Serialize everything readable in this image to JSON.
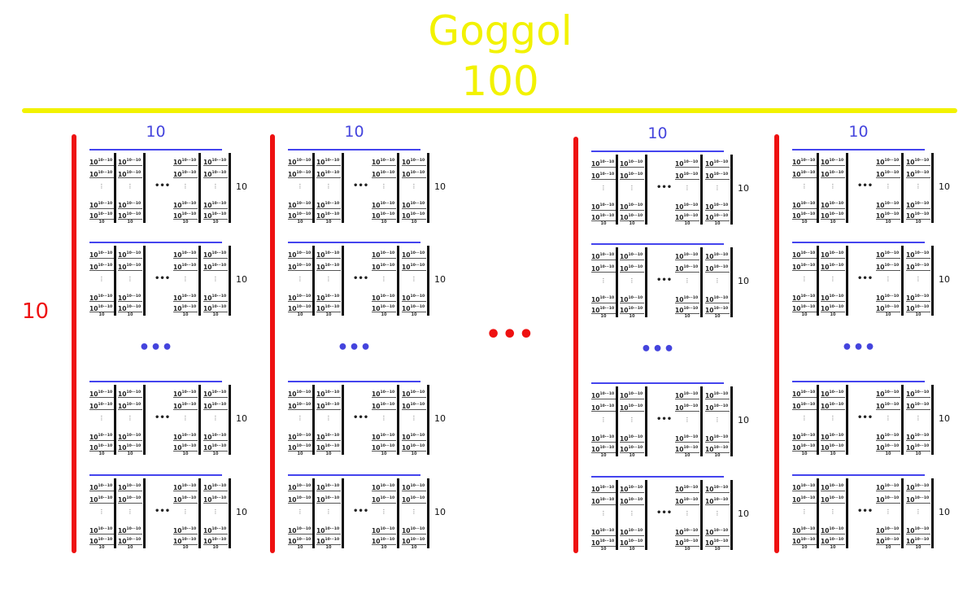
{
  "title": "Goggol",
  "subtitle": "100",
  "outer_count_label": "10",
  "outer_ellipsis": "•••",
  "group_count_label": "10",
  "group_ellipsis": "•••",
  "block": {
    "height_label": "10",
    "column_ellipsis": "•••",
    "entry_base": "10",
    "entry_exponent": "10⋅⋅⋅10",
    "vertical_ellipsis": "⋮",
    "stack_count": "10"
  },
  "colors": {
    "title": "#f2f200",
    "outer": "#ee1111",
    "group": "#4444dd"
  }
}
